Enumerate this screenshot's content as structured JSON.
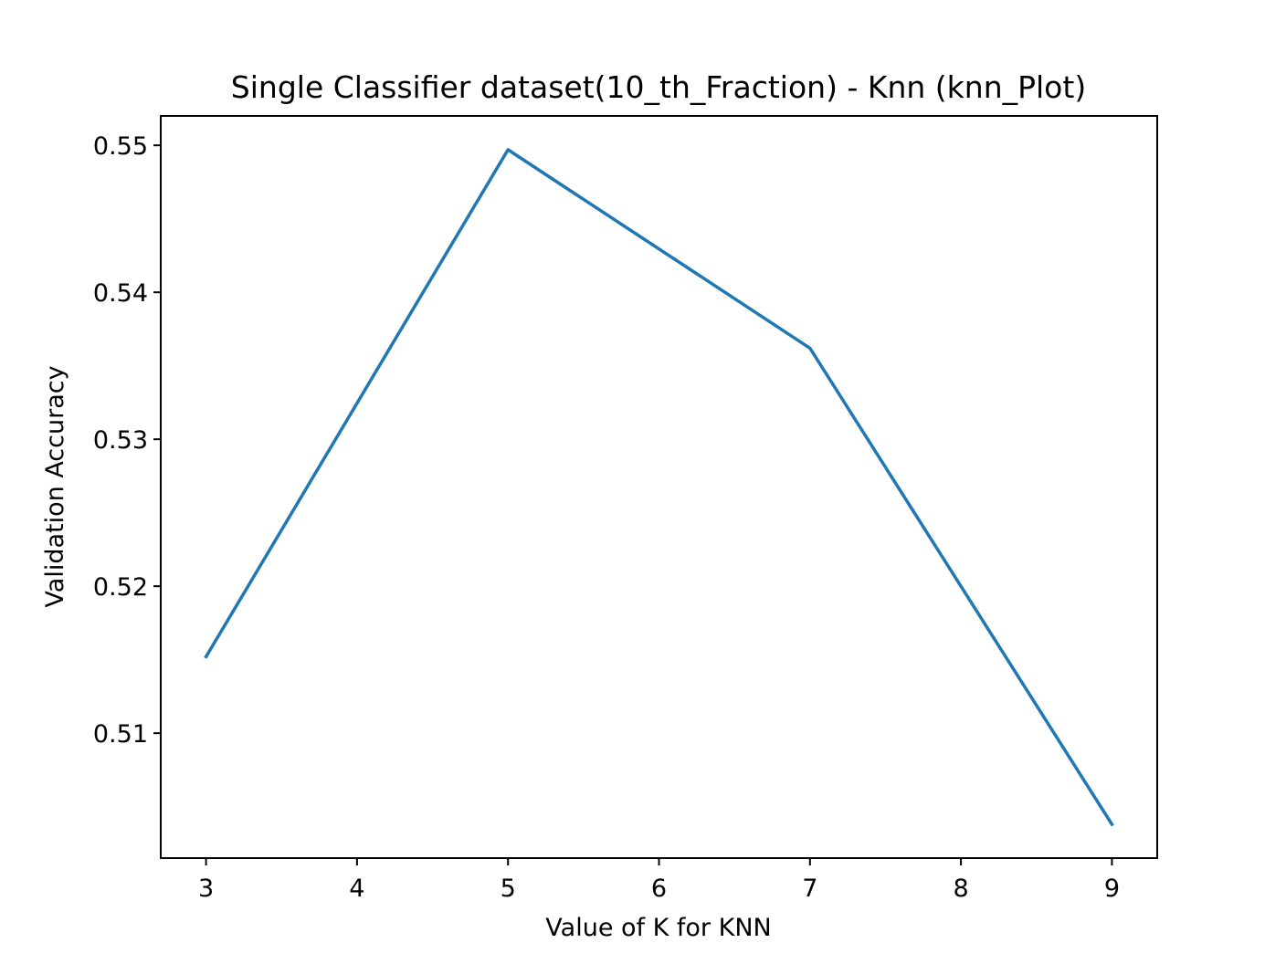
{
  "chart_data": {
    "type": "line",
    "title": "Single Classifier dataset(10_th_Fraction) - Knn (knn_Plot)",
    "xlabel": "Value of K for KNN",
    "ylabel": "Validation Accuracy",
    "x": [
      3,
      5,
      7,
      9
    ],
    "series": [
      {
        "values": [
          0.5152,
          0.5497,
          0.5362,
          0.5038
        ],
        "color": "#1f77b4"
      }
    ],
    "xlim": [
      2.7,
      9.3
    ],
    "ylim": [
      0.5015,
      0.552
    ],
    "xticks": [
      3,
      4,
      5,
      6,
      7,
      8,
      9
    ],
    "xtick_labels": [
      "3",
      "4",
      "5",
      "6",
      "7",
      "8",
      "9"
    ],
    "yticks": [
      0.51,
      0.52,
      0.53,
      0.54,
      0.55
    ],
    "ytick_labels": [
      "0.51",
      "0.52",
      "0.53",
      "0.54",
      "0.55"
    ],
    "grid": false,
    "legend": false
  }
}
